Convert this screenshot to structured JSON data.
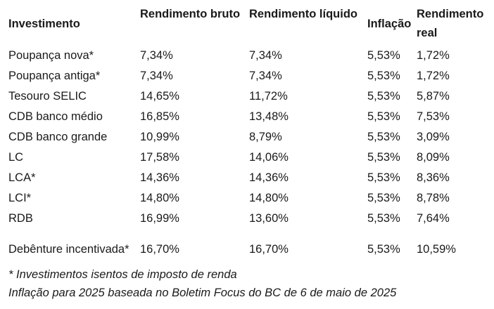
{
  "table": {
    "headers": [
      "Investimento",
      "Rendimento bruto",
      "Rendimento líquido",
      "Inflação",
      "Rendimento real"
    ],
    "rows": [
      [
        "Poupança nova*",
        "7,34%",
        "7,34%",
        "5,53%",
        "1,72%"
      ],
      [
        "Poupança antiga*",
        "7,34%",
        "7,34%",
        "5,53%",
        "1,72%"
      ],
      [
        "Tesouro SELIC",
        "14,65%",
        "11,72%",
        "5,53%",
        "5,87%"
      ],
      [
        "CDB banco médio",
        "16,85%",
        "13,48%",
        "5,53%",
        "7,53%"
      ],
      [
        "CDB banco grande",
        "10,99%",
        "8,79%",
        "5,53%",
        "3,09%"
      ],
      [
        "LC",
        "17,58%",
        "14,06%",
        "5,53%",
        "8,09%"
      ],
      [
        "LCA*",
        "14,36%",
        "14,36%",
        "5,53%",
        "8,36%"
      ],
      [
        "LCI*",
        "14,80%",
        "14,80%",
        "5,53%",
        "8,78%"
      ],
      [
        "RDB",
        "16,99%",
        "13,60%",
        "5,53%",
        "7,64%"
      ],
      [
        "Debênture incentivada*",
        "16,70%",
        "16,70%",
        "5,53%",
        "10,59%"
      ]
    ]
  },
  "footnotes": {
    "tax_exempt": "* Investimentos isentos de imposto de renda",
    "inflation_source": "Inflação para 2025 baseada no Boletim Focus do BC de 6 de maio de 2025"
  }
}
